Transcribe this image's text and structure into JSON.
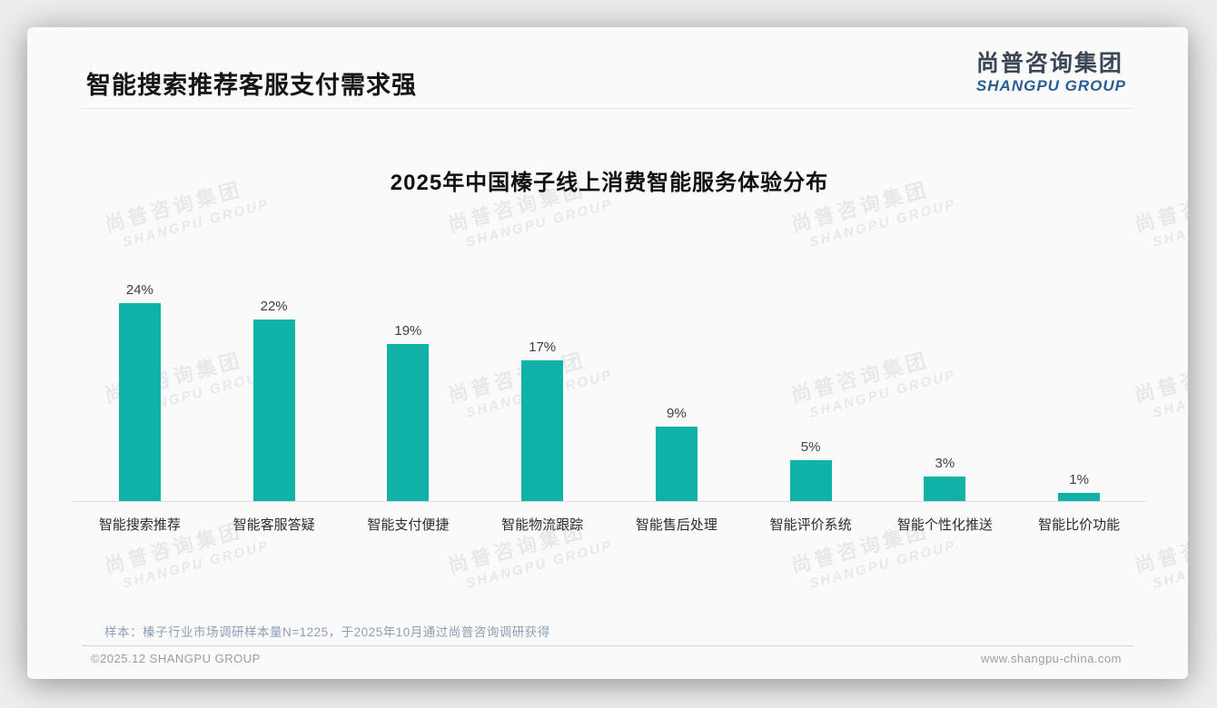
{
  "page": {
    "title": "智能搜索推荐客服支付需求强",
    "note": "样本：榛子行业市场调研样本量N=1225，于2025年10月通过尚普咨询调研获得",
    "footer_left": "©2025.12 SHANGPU GROUP",
    "footer_right": "www.shangpu-china.com"
  },
  "logo": {
    "cn": "尚普咨询集团",
    "en": "SHANGPU GROUP"
  },
  "watermark": {
    "line1": "尚普咨询集团",
    "line2": "SHANGPU GROUP"
  },
  "colors": {
    "bar": "#10b1a6",
    "logo_blue": "#2a5d94",
    "note_text": "#8e9eb5"
  },
  "chart_data": {
    "type": "bar",
    "title": "2025年中国榛子线上消费智能服务体验分布",
    "categories": [
      "智能搜索推荐",
      "智能客服答疑",
      "智能支付便捷",
      "智能物流跟踪",
      "智能售后处理",
      "智能评价系统",
      "智能个性化推送",
      "智能比价功能"
    ],
    "values": [
      24,
      22,
      19,
      17,
      9,
      5,
      3,
      1
    ],
    "unit": "%",
    "value_labels": [
      "24%",
      "22%",
      "19%",
      "17%",
      "9%",
      "5%",
      "3%",
      "1%"
    ],
    "xlabel": "",
    "ylabel": "",
    "ylim": [
      0,
      25
    ],
    "grid": false,
    "legend": "none",
    "bar_color": "#10b1a6"
  }
}
